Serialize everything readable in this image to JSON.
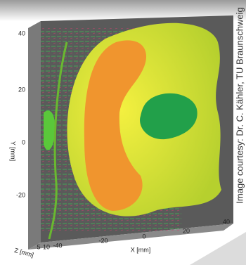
{
  "axes": {
    "y": {
      "label": "Y [mm]",
      "ticks": [
        "40",
        "20",
        "0",
        "-20"
      ]
    },
    "x": {
      "label": "X [mm]",
      "ticks": [
        "-40",
        "-20",
        "0",
        "20",
        "40"
      ]
    },
    "z": {
      "label": "Z [mm]",
      "ticks": [
        "5",
        "10"
      ]
    }
  },
  "credit": "Image courtesy: Dr. C. Kähler, TU Braunschweig"
}
